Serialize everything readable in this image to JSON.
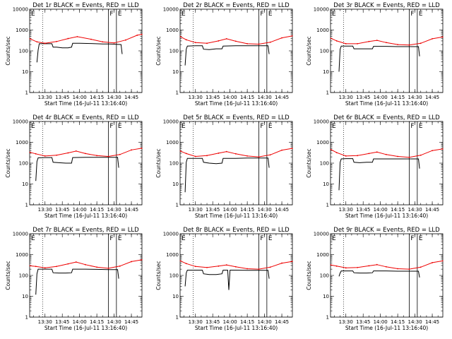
{
  "figure": {
    "background": "#ffffff",
    "events_color": "#000000",
    "lld_color": "#ee0000"
  },
  "chart_data": [
    {
      "type": "line",
      "detector": "Det 1r",
      "title": "Det 1r BLACK = Events, RED = LLD",
      "xlabel": "Start Time (16-Jul-11 13:16:40)",
      "ylabel": "Counts/sec",
      "xlim": [
        "13:16:40",
        "14:54:10"
      ],
      "ylim": [
        1,
        10000
      ],
      "yscale": "log",
      "xticks": [
        "13:30",
        "13:45",
        "14:00",
        "14:15",
        "14:30",
        "14:45"
      ],
      "yticks": [
        "1",
        "10",
        "100",
        "1000",
        "10000"
      ],
      "dotted_marker_time": "13:28",
      "flare_markers": [
        "F",
        "E"
      ],
      "flare_marker_times": [
        "14:25",
        "14:32"
      ],
      "series": [
        {
          "name": "Events",
          "color": "#000000",
          "x": [
            "13:23",
            "13:24",
            "13:25",
            "13:30",
            "13:36",
            "13:37",
            "13:40",
            "13:45",
            "13:50",
            "13:53",
            "13:54",
            "14:00",
            "14:10",
            "14:20",
            "14:25",
            "14:30",
            "14:36",
            "14:37"
          ],
          "y": [
            28,
            110,
            220,
            220,
            220,
            150,
            150,
            140,
            140,
            150,
            230,
            230,
            225,
            215,
            215,
            210,
            200,
            70
          ]
        },
        {
          "name": "LLD",
          "color": "#ee0000",
          "x": [
            "13:17",
            "13:23",
            "13:30",
            "13:40",
            "13:50",
            "13:58",
            "14:10",
            "14:20",
            "14:30",
            "14:40",
            "14:50",
            "14:54"
          ],
          "y": [
            380,
            270,
            230,
            280,
            390,
            480,
            360,
            270,
            240,
            330,
            560,
            620
          ]
        }
      ]
    },
    {
      "type": "line",
      "detector": "Det 2r",
      "title": "Det 2r BLACK = Events, RED = LLD",
      "xlabel": "Start Time (16-Jul-11 13:16:40)",
      "ylabel": "Counts/sec",
      "xlim": [
        "13:16:40",
        "14:54:10"
      ],
      "ylim": [
        1,
        10000
      ],
      "yscale": "log",
      "xticks": [
        "13:30",
        "13:45",
        "14:00",
        "14:15",
        "14:30",
        "14:45"
      ],
      "yticks": [
        "1",
        "10",
        "100",
        "1000",
        "10000"
      ],
      "dotted_marker_time": "13:28",
      "flare_markers": [
        "F",
        "E"
      ],
      "flare_marker_times": [
        "14:25",
        "14:32"
      ],
      "series": [
        {
          "name": "Events",
          "color": "#000000",
          "x": [
            "13:21",
            "13:22",
            "13:23",
            "13:30",
            "13:36",
            "13:37",
            "13:42",
            "13:48",
            "13:53",
            "13:54",
            "14:05",
            "14:15",
            "14:25",
            "14:33",
            "14:34"
          ],
          "y": [
            20,
            120,
            170,
            175,
            175,
            120,
            115,
            125,
            125,
            170,
            175,
            175,
            175,
            175,
            70
          ]
        },
        {
          "name": "LLD",
          "color": "#ee0000",
          "x": [
            "13:17",
            "13:22",
            "13:30",
            "13:40",
            "13:50",
            "13:57",
            "14:05",
            "14:15",
            "14:25",
            "14:35",
            "14:45",
            "14:54"
          ],
          "y": [
            480,
            340,
            250,
            230,
            300,
            380,
            290,
            220,
            210,
            260,
            420,
            520
          ]
        }
      ]
    },
    {
      "type": "line",
      "detector": "Det 3r",
      "title": "Det 3r BLACK = Events, RED = LLD",
      "xlabel": "Start Time (16-Jul-11 13:16:40)",
      "ylabel": "Counts/sec",
      "xlim": [
        "13:16:40",
        "14:54:10"
      ],
      "ylim": [
        1,
        10000
      ],
      "yscale": "log",
      "xticks": [
        "13:30",
        "13:45",
        "14:00",
        "14:15",
        "14:30",
        "14:45"
      ],
      "yticks": [
        "1",
        "10",
        "100",
        "1000",
        "10000"
      ],
      "dotted_marker_time": "13:28",
      "flare_markers": [
        "F",
        "E"
      ],
      "flare_marker_times": [
        "14:25",
        "14:32"
      ],
      "series": [
        {
          "name": "Events",
          "color": "#000000",
          "x": [
            "13:24",
            "13:25",
            "13:26",
            "13:30",
            "13:36",
            "13:37",
            "13:42",
            "13:48",
            "13:53",
            "13:54",
            "14:05",
            "14:15",
            "14:25",
            "14:33",
            "14:34"
          ],
          "y": [
            10,
            120,
            170,
            170,
            170,
            125,
            125,
            125,
            125,
            165,
            165,
            160,
            160,
            160,
            55
          ]
        },
        {
          "name": "LLD",
          "color": "#ee0000",
          "x": [
            "13:17",
            "13:22",
            "13:30",
            "13:40",
            "13:50",
            "13:57",
            "14:05",
            "14:15",
            "14:25",
            "14:35",
            "14:45",
            "14:54"
          ],
          "y": [
            400,
            300,
            220,
            220,
            280,
            320,
            250,
            200,
            190,
            230,
            380,
            460
          ]
        }
      ]
    },
    {
      "type": "line",
      "detector": "Det 4r",
      "title": "Det 4r BLACK = Events, RED = LLD",
      "xlabel": "Start Time (16-Jul-11 13:16:40)",
      "ylabel": "Counts/sec",
      "xlim": [
        "13:16:40",
        "14:54:10"
      ],
      "ylim": [
        1,
        10000
      ],
      "yscale": "log",
      "xticks": [
        "13:30",
        "13:45",
        "14:00",
        "14:15",
        "14:30",
        "14:45"
      ],
      "yticks": [
        "1",
        "10",
        "100",
        "1000",
        "10000"
      ],
      "dotted_marker_time": "13:28",
      "flare_markers": [
        "F",
        "E"
      ],
      "flare_marker_times": [
        "14:25",
        "14:32"
      ],
      "series": [
        {
          "name": "Events",
          "color": "#000000",
          "x": [
            "13:22",
            "13:23",
            "13:24",
            "13:30",
            "13:36",
            "13:37",
            "13:42",
            "13:48",
            "13:53",
            "13:54",
            "14:05",
            "14:15",
            "14:25",
            "14:33",
            "14:34"
          ],
          "y": [
            14,
            120,
            180,
            185,
            185,
            110,
            105,
            100,
            100,
            185,
            190,
            190,
            190,
            190,
            60
          ]
        },
        {
          "name": "LLD",
          "color": "#ee0000",
          "x": [
            "13:17",
            "13:22",
            "13:30",
            "13:40",
            "13:50",
            "13:57",
            "14:05",
            "14:15",
            "14:25",
            "14:35",
            "14:45",
            "14:54"
          ],
          "y": [
            330,
            280,
            220,
            240,
            310,
            380,
            290,
            230,
            210,
            260,
            430,
            520
          ]
        }
      ]
    },
    {
      "type": "line",
      "detector": "Det 5r",
      "title": "Det 5r BLACK = Events, RED = LLD",
      "xlabel": "Start Time (16-Jul-11 13:16:40)",
      "ylabel": "Counts/sec",
      "xlim": [
        "13:16:40",
        "14:54:10"
      ],
      "ylim": [
        1,
        10000
      ],
      "yscale": "log",
      "xticks": [
        "13:30",
        "13:45",
        "14:00",
        "14:15",
        "14:30",
        "14:45"
      ],
      "yticks": [
        "1",
        "10",
        "100",
        "1000",
        "10000"
      ],
      "dotted_marker_time": "13:28",
      "flare_markers": [
        "F",
        "E"
      ],
      "flare_marker_times": [
        "14:25",
        "14:32"
      ],
      "series": [
        {
          "name": "Events",
          "color": "#000000",
          "x": [
            "13:21",
            "13:22",
            "13:23",
            "13:30",
            "13:36",
            "13:37",
            "13:42",
            "13:48",
            "13:53",
            "13:54",
            "14:05",
            "14:15",
            "14:25",
            "14:33",
            "14:34"
          ],
          "y": [
            4,
            110,
            170,
            170,
            170,
            110,
            100,
            95,
            100,
            170,
            170,
            175,
            175,
            175,
            60
          ]
        },
        {
          "name": "LLD",
          "color": "#ee0000",
          "x": [
            "13:17",
            "13:22",
            "13:30",
            "13:40",
            "13:50",
            "13:57",
            "14:05",
            "14:15",
            "14:25",
            "14:35",
            "14:45",
            "14:54"
          ],
          "y": [
            380,
            290,
            210,
            230,
            300,
            360,
            280,
            220,
            200,
            250,
            420,
            510
          ]
        }
      ]
    },
    {
      "type": "line",
      "detector": "Det 6r",
      "title": "Det 6r BLACK = Events, RED = LLD",
      "xlabel": "Start Time (16-Jul-11 13:16:40)",
      "ylabel": "Counts/sec",
      "xlim": [
        "13:16:40",
        "14:54:10"
      ],
      "ylim": [
        1,
        10000
      ],
      "yscale": "log",
      "xticks": [
        "13:30",
        "13:45",
        "14:00",
        "14:15",
        "14:30",
        "14:45"
      ],
      "yticks": [
        "1",
        "10",
        "100",
        "1000",
        "10000"
      ],
      "dotted_marker_time": "13:28",
      "flare_markers": [
        "F",
        "E"
      ],
      "flare_marker_times": [
        "14:25",
        "14:32"
      ],
      "series": [
        {
          "name": "Events",
          "color": "#000000",
          "x": [
            "13:24",
            "13:25",
            "13:26",
            "13:30",
            "13:36",
            "13:37",
            "13:42",
            "13:48",
            "13:53",
            "13:54",
            "14:05",
            "14:15",
            "14:25",
            "14:33",
            "14:34"
          ],
          "y": [
            5,
            110,
            160,
            165,
            165,
            110,
            105,
            110,
            110,
            160,
            160,
            160,
            160,
            160,
            55
          ]
        },
        {
          "name": "LLD",
          "color": "#ee0000",
          "x": [
            "13:17",
            "13:22",
            "13:30",
            "13:40",
            "13:50",
            "13:57",
            "14:05",
            "14:15",
            "14:25",
            "14:35",
            "14:45",
            "14:54"
          ],
          "y": [
            450,
            320,
            220,
            230,
            290,
            340,
            260,
            210,
            190,
            240,
            400,
            480
          ]
        }
      ]
    },
    {
      "type": "line",
      "detector": "Det 7r",
      "title": "Det 7r BLACK = Events, RED = LLD",
      "xlabel": "Start Time (16-Jul-11 13:16:40)",
      "ylabel": "Counts/sec",
      "xlim": [
        "13:16:40",
        "14:54:10"
      ],
      "ylim": [
        1,
        10000
      ],
      "yscale": "log",
      "xticks": [
        "13:30",
        "13:45",
        "14:00",
        "14:15",
        "14:30",
        "14:45"
      ],
      "yticks": [
        "1",
        "10",
        "100",
        "1000",
        "10000"
      ],
      "dotted_marker_time": "13:28",
      "flare_markers": [
        "F",
        "E"
      ],
      "flare_marker_times": [
        "14:25",
        "14:32"
      ],
      "series": [
        {
          "name": "Events",
          "color": "#000000",
          "x": [
            "13:22",
            "13:23",
            "13:24",
            "13:30",
            "13:36",
            "13:37",
            "13:42",
            "13:48",
            "13:53",
            "13:54",
            "14:05",
            "14:15",
            "14:25",
            "14:33",
            "14:34"
          ],
          "y": [
            12,
            120,
            200,
            200,
            200,
            135,
            130,
            130,
            135,
            200,
            200,
            195,
            190,
            190,
            70
          ]
        },
        {
          "name": "LLD",
          "color": "#ee0000",
          "x": [
            "13:17",
            "13:22",
            "13:30",
            "13:40",
            "13:50",
            "13:57",
            "14:05",
            "14:15",
            "14:25",
            "14:35",
            "14:45",
            "14:54"
          ],
          "y": [
            290,
            270,
            230,
            270,
            360,
            440,
            330,
            250,
            220,
            280,
            460,
            560
          ]
        }
      ]
    },
    {
      "type": "line",
      "detector": "Det 8r",
      "title": "Det 8r BLACK = Events, RED = LLD",
      "xlabel": "Start Time (16-Jul-11 13:16:40)",
      "ylabel": "Counts/sec",
      "xlim": [
        "13:16:40",
        "14:54:10"
      ],
      "ylim": [
        1,
        10000
      ],
      "yscale": "log",
      "xticks": [
        "13:30",
        "13:45",
        "14:00",
        "14:15",
        "14:30",
        "14:45"
      ],
      "yticks": [
        "1",
        "10",
        "100",
        "1000",
        "10000"
      ],
      "dotted_marker_time": "13:28",
      "flare_markers": [
        "F",
        "E"
      ],
      "flare_marker_times": [
        "14:25",
        "14:32"
      ],
      "series": [
        {
          "name": "Events",
          "color": "#000000",
          "x": [
            "13:21",
            "13:22",
            "13:23",
            "13:30",
            "13:36",
            "13:37",
            "13:42",
            "13:48",
            "13:53",
            "13:54",
            "13:58",
            "13:59",
            "14:00",
            "14:05",
            "14:15",
            "14:25",
            "14:33",
            "14:34"
          ],
          "y": [
            30,
            130,
            180,
            180,
            180,
            120,
            110,
            110,
            120,
            180,
            180,
            20,
            180,
            180,
            175,
            175,
            175,
            70
          ]
        },
        {
          "name": "LLD",
          "color": "#ee0000",
          "x": [
            "13:17",
            "13:22",
            "13:30",
            "13:40",
            "13:50",
            "13:57",
            "14:05",
            "14:15",
            "14:25",
            "14:35",
            "14:45",
            "14:54"
          ],
          "y": [
            500,
            370,
            270,
            240,
            280,
            320,
            260,
            210,
            200,
            250,
            390,
            470
          ]
        }
      ]
    },
    {
      "type": "line",
      "detector": "Det 9r",
      "title": "Det 9r BLACK = Events, RED = LLD",
      "xlabel": "Start Time (16-Jul-11 13:16:40)",
      "ylabel": "Counts/sec",
      "xlim": [
        "13:16:40",
        "14:54:10"
      ],
      "ylim": [
        1,
        10000
      ],
      "yscale": "log",
      "xticks": [
        "13:30",
        "13:45",
        "14:00",
        "14:15",
        "14:30",
        "14:45"
      ],
      "yticks": [
        "1",
        "10",
        "100",
        "1000",
        "10000"
      ],
      "dotted_marker_time": "13:28",
      "flare_markers": [
        "F",
        "E"
      ],
      "flare_marker_times": [
        "14:25",
        "14:32"
      ],
      "series": [
        {
          "name": "Events",
          "color": "#000000",
          "x": [
            "13:24",
            "13:25",
            "13:26",
            "13:30",
            "13:36",
            "13:37",
            "13:42",
            "13:48",
            "13:53",
            "13:54",
            "14:05",
            "14:15",
            "14:25",
            "14:33",
            "14:34"
          ],
          "y": [
            90,
            130,
            165,
            165,
            165,
            135,
            130,
            130,
            135,
            165,
            165,
            160,
            160,
            160,
            80
          ]
        },
        {
          "name": "LLD",
          "color": "#ee0000",
          "x": [
            "13:17",
            "13:22",
            "13:30",
            "13:40",
            "13:50",
            "13:57",
            "14:05",
            "14:15",
            "14:25",
            "14:35",
            "14:45",
            "14:54"
          ],
          "y": [
            320,
            280,
            230,
            240,
            290,
            330,
            260,
            210,
            200,
            250,
            410,
            500
          ]
        }
      ]
    }
  ]
}
